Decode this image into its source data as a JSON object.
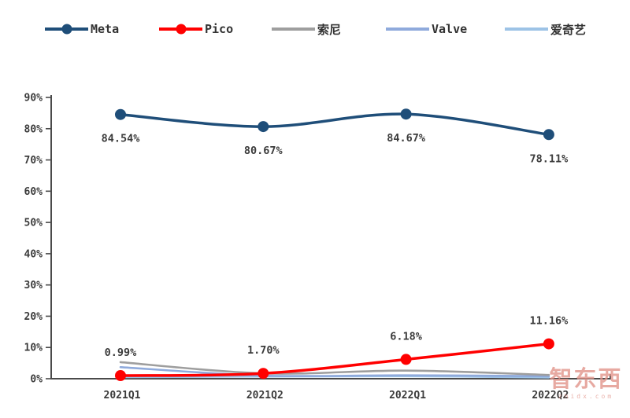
{
  "page": {
    "background": "#ffffff"
  },
  "legend": {
    "position": "top",
    "items": [
      {
        "label": "Meta",
        "color": "#1F4E79",
        "marker": true,
        "icon": "line-with-dot-swatch"
      },
      {
        "label": "Pico",
        "color": "#FF0000",
        "marker": true,
        "icon": "line-with-dot-swatch"
      },
      {
        "label": "索尼",
        "color": "#9E9E9E",
        "marker": false,
        "icon": "line-swatch"
      },
      {
        "label": "Valve",
        "color": "#8FAADC",
        "marker": false,
        "icon": "line-swatch"
      },
      {
        "label": "爱奇艺",
        "color": "#9DC3E6",
        "marker": false,
        "icon": "line-swatch"
      }
    ]
  },
  "chart_data": {
    "type": "line",
    "title": "",
    "xlabel": "",
    "ylabel": "",
    "grid": false,
    "legend_position": "top",
    "categories": [
      "2021Q1",
      "2021Q2",
      "2022Q1",
      "2022Q2"
    ],
    "ylim": [
      0,
      90
    ],
    "ytick_step": 10,
    "ytick_labels": [
      "0%",
      "10%",
      "20%",
      "30%",
      "40%",
      "50%",
      "60%",
      "70%",
      "80%",
      "90%"
    ],
    "series": [
      {
        "name": "Meta",
        "color": "#1F4E79",
        "marker": true,
        "line_width": 3.5,
        "values": [
          84.54,
          80.67,
          84.67,
          78.11
        ],
        "labels": [
          "84.54%",
          "80.67%",
          "84.67%",
          "78.11%"
        ],
        "label_side": "below"
      },
      {
        "name": "Pico",
        "color": "#FF0000",
        "marker": true,
        "line_width": 3.5,
        "values": [
          0.99,
          1.7,
          6.18,
          11.16
        ],
        "labels": [
          "0.99%",
          "1.70%",
          "6.18%",
          "11.16%"
        ],
        "label_side": "above"
      },
      {
        "name": "索尼",
        "color": "#9E9E9E",
        "marker": false,
        "line_width": 2.6,
        "values": [
          5.3,
          1.7,
          2.6,
          1.2
        ],
        "labels": [],
        "label_side": "none"
      },
      {
        "name": "Valve",
        "color": "#8FAADC",
        "marker": false,
        "line_width": 2.6,
        "values": [
          3.7,
          1.0,
          1.1,
          0.8
        ],
        "labels": [],
        "label_side": "none"
      },
      {
        "name": "爱奇艺",
        "color": "#9DC3E6",
        "marker": false,
        "line_width": 2.6,
        "values": [
          0.5,
          0.7,
          0.8,
          0.4
        ],
        "labels": [],
        "label_side": "none"
      }
    ]
  },
  "watermark": {
    "text": "智东西",
    "subtext": "zhidx.com",
    "color": "#E2948A"
  }
}
